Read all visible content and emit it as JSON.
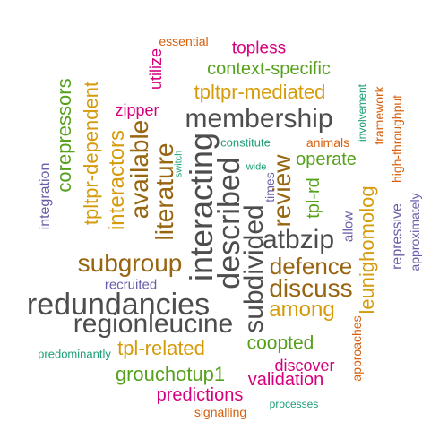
{
  "words": {
    "essential": "essential",
    "topless": "topless",
    "utilize": "utilize",
    "context_specific": "context-specific",
    "tpltpr_mediated": "tpltpr-mediated",
    "involvement": "involvement",
    "framework": "framework",
    "high_throughput": "high-throughput",
    "corepressors": "corepressors",
    "tpltpr_dependent": "tpltpr-dependent",
    "zipper": "zipper",
    "membership": "membership",
    "interactors": "interactors",
    "available": "available",
    "literature": "literature",
    "interacting": "interacting",
    "switch": "switch",
    "constitute": "constitute",
    "animals": "animals",
    "described": "described",
    "review": "review",
    "operate": "operate",
    "wide": "wide",
    "times": "times",
    "tpl_rd": "tpl-rd",
    "integration": "integration",
    "allow": "allow",
    "leunighomolog": "leunighomolog",
    "repressive": "repressive",
    "approximately": "approximately",
    "subdivided": "subdivided",
    "atbzip": "atbzip",
    "subgroup": "subgroup",
    "defence": "defence",
    "recruited": "recruited",
    "discuss": "discuss",
    "redundancies": "redundancies",
    "among": "among",
    "regionleucine": "regionleucine",
    "approaches": "approaches",
    "tpl_related": "tpl-related",
    "coopted": "coopted",
    "predominantly": "predominantly",
    "discover": "discover",
    "grouchotup1": "grouchotup1",
    "validation": "validation",
    "predictions": "predictions",
    "signalling": "signalling",
    "processes": "processes"
  },
  "colors": {
    "dark_gray": "#4d4d4d",
    "brown": "#986511",
    "gold": "#d59b0b",
    "magenta": "#d6007d",
    "green": "#55a11c",
    "purple": "#665ea8",
    "orange": "#d65f0e",
    "teal": "#1b9e77"
  }
}
